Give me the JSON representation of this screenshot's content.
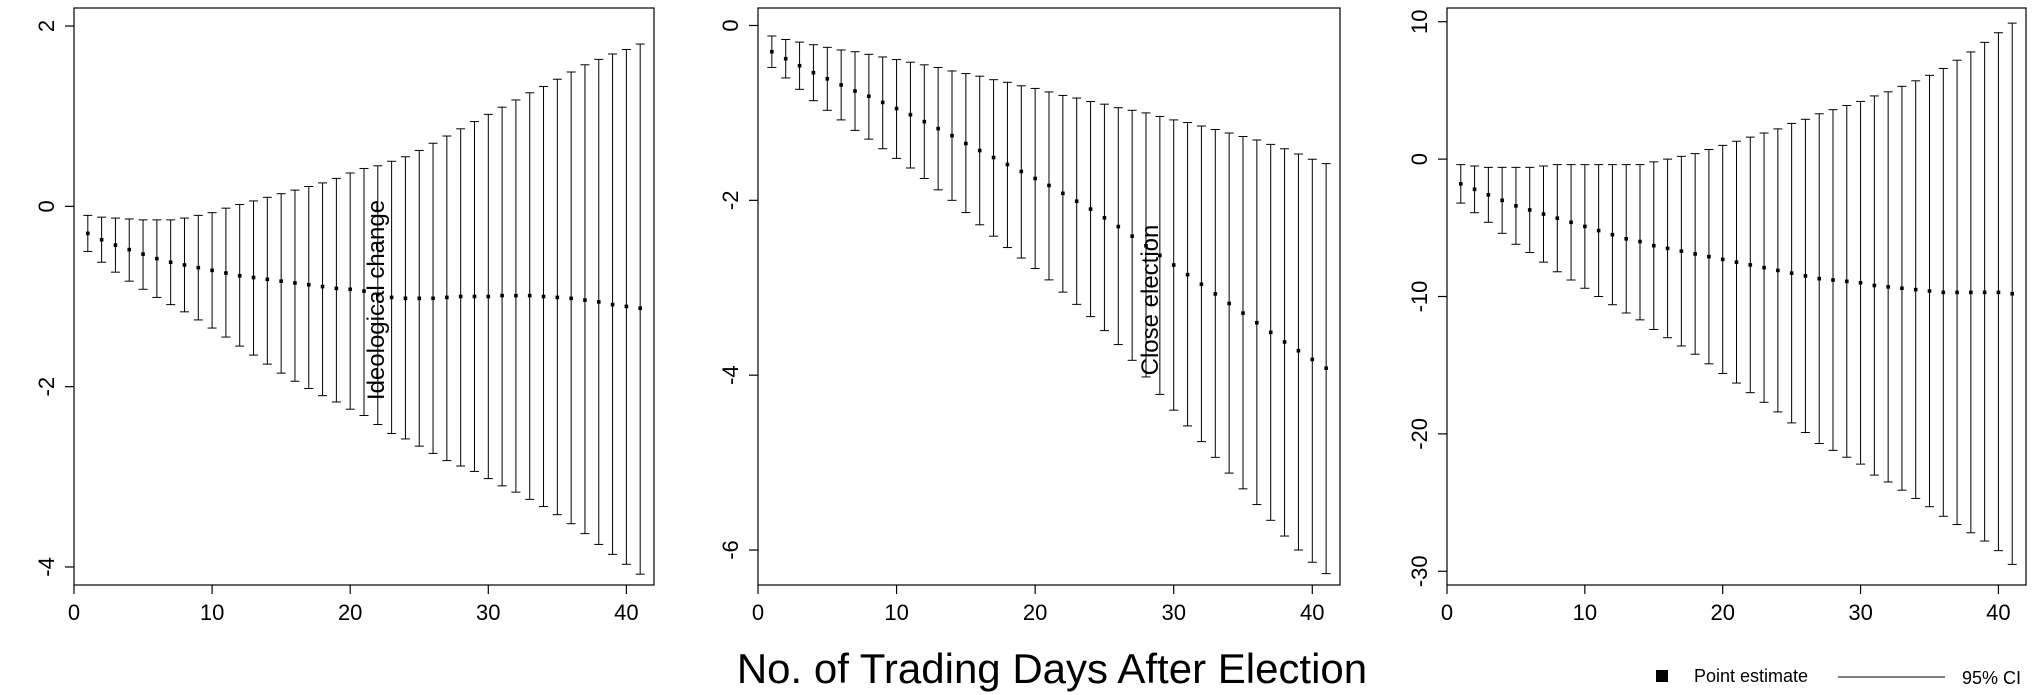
{
  "figure": {
    "xlabel": "No. of Trading Days After Election"
  },
  "legend": {
    "point_label": "Point estimate",
    "ci_label": "95% CI"
  },
  "chart_data": [
    {
      "type": "scatter",
      "annotation": "Ideological change",
      "x": [
        1,
        2,
        3,
        4,
        5,
        6,
        7,
        8,
        9,
        10,
        11,
        12,
        13,
        14,
        15,
        16,
        17,
        18,
        19,
        20,
        21,
        22,
        23,
        24,
        25,
        26,
        27,
        28,
        29,
        30,
        31,
        32,
        33,
        34,
        35,
        36,
        37,
        38,
        39,
        40,
        41
      ],
      "series": [
        {
          "name": "Point estimate",
          "values": [
            -0.3,
            -0.37,
            -0.43,
            -0.48,
            -0.53,
            -0.58,
            -0.62,
            -0.65,
            -0.68,
            -0.71,
            -0.74,
            -0.77,
            -0.79,
            -0.81,
            -0.83,
            -0.85,
            -0.87,
            -0.89,
            -0.91,
            -0.92,
            -0.94,
            -0.98,
            -1.01,
            -1.02,
            -1.02,
            -1.02,
            -1.01,
            -1.0,
            -1.0,
            -1.0,
            -0.99,
            -0.99,
            -0.99,
            -1.0,
            -1.01,
            -1.02,
            -1.04,
            -1.06,
            -1.09,
            -1.11,
            -1.13
          ]
        },
        {
          "name": "95% CI upper",
          "values": [
            -0.1,
            -0.12,
            -0.13,
            -0.14,
            -0.15,
            -0.15,
            -0.15,
            -0.13,
            -0.1,
            -0.07,
            -0.02,
            0.02,
            0.06,
            0.1,
            0.14,
            0.18,
            0.22,
            0.26,
            0.31,
            0.37,
            0.42,
            0.45,
            0.5,
            0.55,
            0.62,
            0.7,
            0.78,
            0.86,
            0.94,
            1.02,
            1.1,
            1.18,
            1.26,
            1.33,
            1.41,
            1.49,
            1.57,
            1.63,
            1.69,
            1.74,
            1.8
          ]
        },
        {
          "name": "95% CI lower",
          "values": [
            -0.5,
            -0.62,
            -0.73,
            -0.83,
            -0.92,
            -1.01,
            -1.09,
            -1.17,
            -1.26,
            -1.35,
            -1.45,
            -1.55,
            -1.65,
            -1.75,
            -1.85,
            -1.94,
            -2.02,
            -2.1,
            -2.17,
            -2.25,
            -2.32,
            -2.42,
            -2.52,
            -2.58,
            -2.66,
            -2.74,
            -2.82,
            -2.88,
            -2.94,
            -3.02,
            -3.1,
            -3.17,
            -3.25,
            -3.33,
            -3.42,
            -3.52,
            -3.63,
            -3.75,
            -3.86,
            -3.97,
            -4.08
          ]
        }
      ],
      "xlim": [
        0,
        42
      ],
      "ylim": [
        -4.2,
        2.2
      ],
      "xticks": [
        0,
        10,
        20,
        30,
        40
      ],
      "yticks": [
        -4,
        -2,
        0,
        2
      ],
      "grid": false
    },
    {
      "type": "scatter",
      "annotation": "Close election",
      "x": [
        1,
        2,
        3,
        4,
        5,
        6,
        7,
        8,
        9,
        10,
        11,
        12,
        13,
        14,
        15,
        16,
        17,
        18,
        19,
        20,
        21,
        22,
        23,
        24,
        25,
        26,
        27,
        28,
        29,
        30,
        31,
        32,
        33,
        34,
        35,
        36,
        37,
        38,
        39,
        40,
        41
      ],
      "series": [
        {
          "name": "Point estimate",
          "values": [
            -0.3,
            -0.38,
            -0.46,
            -0.54,
            -0.61,
            -0.68,
            -0.75,
            -0.81,
            -0.88,
            -0.95,
            -1.02,
            -1.1,
            -1.18,
            -1.26,
            -1.35,
            -1.43,
            -1.51,
            -1.59,
            -1.67,
            -1.75,
            -1.83,
            -1.92,
            -2.01,
            -2.1,
            -2.2,
            -2.3,
            -2.41,
            -2.52,
            -2.63,
            -2.74,
            -2.85,
            -2.96,
            -3.07,
            -3.18,
            -3.29,
            -3.4,
            -3.51,
            -3.62,
            -3.72,
            -3.82,
            -3.92
          ]
        },
        {
          "name": "95% CI upper",
          "values": [
            -0.12,
            -0.16,
            -0.19,
            -0.22,
            -0.25,
            -0.28,
            -0.3,
            -0.33,
            -0.36,
            -0.39,
            -0.42,
            -0.45,
            -0.48,
            -0.52,
            -0.55,
            -0.58,
            -0.62,
            -0.65,
            -0.69,
            -0.72,
            -0.76,
            -0.8,
            -0.83,
            -0.87,
            -0.9,
            -0.94,
            -0.97,
            -1.0,
            -1.04,
            -1.08,
            -1.11,
            -1.15,
            -1.19,
            -1.23,
            -1.27,
            -1.31,
            -1.36,
            -1.41,
            -1.47,
            -1.53,
            -1.58
          ]
        },
        {
          "name": "95% CI lower",
          "values": [
            -0.48,
            -0.6,
            -0.73,
            -0.86,
            -0.97,
            -1.08,
            -1.2,
            -1.3,
            -1.41,
            -1.52,
            -1.63,
            -1.75,
            -1.88,
            -2.0,
            -2.14,
            -2.28,
            -2.41,
            -2.54,
            -2.66,
            -2.78,
            -2.91,
            -3.05,
            -3.19,
            -3.33,
            -3.49,
            -3.65,
            -3.83,
            -4.02,
            -4.22,
            -4.4,
            -4.58,
            -4.76,
            -4.94,
            -5.12,
            -5.3,
            -5.48,
            -5.66,
            -5.84,
            -6.0,
            -6.14,
            -6.27
          ]
        }
      ],
      "xlim": [
        0,
        42
      ],
      "ylim": [
        -6.4,
        0.2
      ],
      "xticks": [
        0,
        10,
        20,
        30,
        40
      ],
      "yticks": [
        -6,
        -4,
        -2,
        0
      ],
      "grid": false
    },
    {
      "type": "scatter",
      "x": [
        1,
        2,
        3,
        4,
        5,
        6,
        7,
        8,
        9,
        10,
        11,
        12,
        13,
        14,
        15,
        16,
        17,
        18,
        19,
        20,
        21,
        22,
        23,
        24,
        25,
        26,
        27,
        28,
        29,
        30,
        31,
        32,
        33,
        34,
        35,
        36,
        37,
        38,
        39,
        40,
        41
      ],
      "series": [
        {
          "name": "Point estimate",
          "values": [
            -1.8,
            -2.2,
            -2.6,
            -3.0,
            -3.4,
            -3.7,
            -4.0,
            -4.3,
            -4.6,
            -4.9,
            -5.2,
            -5.5,
            -5.8,
            -6.0,
            -6.3,
            -6.5,
            -6.7,
            -6.9,
            -7.1,
            -7.3,
            -7.5,
            -7.7,
            -7.9,
            -8.1,
            -8.3,
            -8.5,
            -8.7,
            -8.8,
            -8.9,
            -9.0,
            -9.2,
            -9.3,
            -9.4,
            -9.5,
            -9.6,
            -9.7,
            -9.7,
            -9.7,
            -9.7,
            -9.7,
            -9.8
          ]
        },
        {
          "name": "95% CI upper",
          "values": [
            -0.4,
            -0.5,
            -0.6,
            -0.6,
            -0.6,
            -0.6,
            -0.5,
            -0.4,
            -0.4,
            -0.4,
            -0.4,
            -0.4,
            -0.4,
            -0.4,
            -0.2,
            0.0,
            0.2,
            0.4,
            0.7,
            1.0,
            1.3,
            1.6,
            1.9,
            2.2,
            2.6,
            2.9,
            3.3,
            3.6,
            3.9,
            4.2,
            4.6,
            4.9,
            5.3,
            5.7,
            6.1,
            6.6,
            7.2,
            7.8,
            8.5,
            9.2,
            9.9
          ]
        },
        {
          "name": "95% CI lower",
          "values": [
            -3.2,
            -3.9,
            -4.6,
            -5.4,
            -6.2,
            -6.8,
            -7.5,
            -8.2,
            -8.8,
            -9.4,
            -10.0,
            -10.6,
            -11.2,
            -11.7,
            -12.4,
            -13.0,
            -13.6,
            -14.2,
            -14.9,
            -15.6,
            -16.3,
            -17.0,
            -17.7,
            -18.4,
            -19.2,
            -19.9,
            -20.7,
            -21.2,
            -21.7,
            -22.2,
            -23.0,
            -23.5,
            -24.1,
            -24.7,
            -25.3,
            -26.0,
            -26.6,
            -27.2,
            -27.8,
            -28.5,
            -29.5
          ]
        }
      ],
      "xlim": [
        0,
        42
      ],
      "ylim": [
        -31,
        11
      ],
      "xticks": [
        0,
        10,
        20,
        30,
        40
      ],
      "yticks": [
        -30,
        -20,
        -10,
        0,
        10
      ],
      "grid": false
    }
  ]
}
